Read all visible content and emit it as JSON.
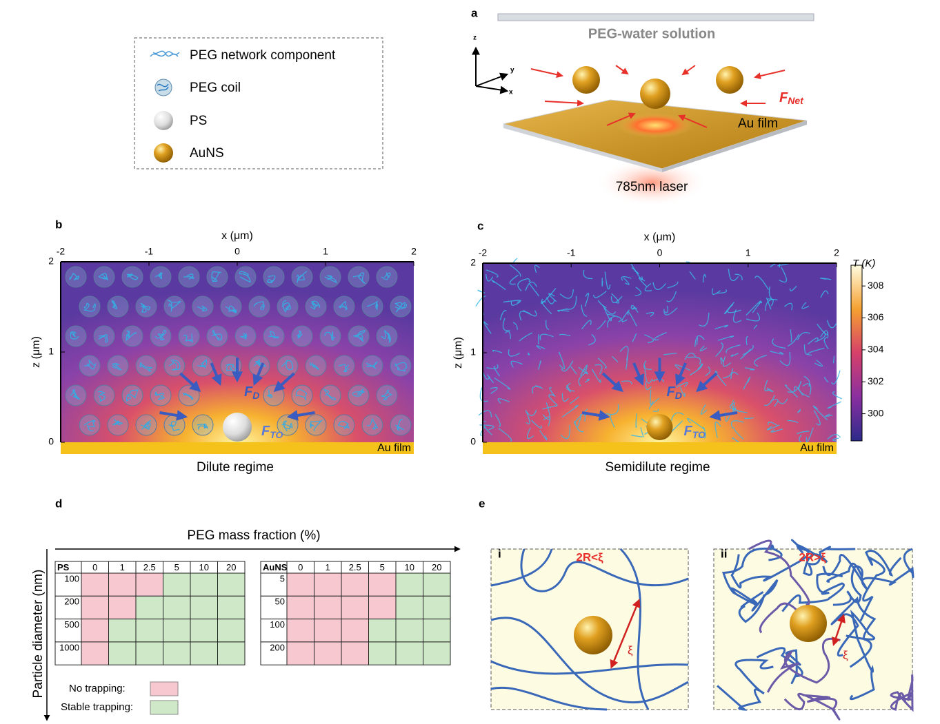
{
  "legend": {
    "items": [
      "PEG network component",
      "PEG coil",
      "PS",
      "AuNS"
    ]
  },
  "panel_a": {
    "label": "a",
    "solution": "PEG-water solution",
    "film": "Au film",
    "laser": "785nm laser",
    "force": "F",
    "force_sub": "Net",
    "axes": [
      "z",
      "y",
      "x"
    ]
  },
  "panel_b": {
    "label": "b",
    "xlabel": "x (μm)",
    "xticks": [
      -2,
      -1,
      0,
      1,
      2
    ],
    "xlim": [
      -2,
      2
    ],
    "zlabel": "z (μm)",
    "zticks": [
      0,
      1,
      2
    ],
    "zlim": [
      0,
      2
    ],
    "force_d": "F",
    "force_d_sub": "D",
    "force_to": "F",
    "force_to_sub": "TO",
    "film": "Au film",
    "caption": "Dilute regime"
  },
  "panel_c": {
    "label": "c",
    "xlabel": "x (μm)",
    "xticks": [
      -2,
      -1,
      0,
      1,
      2
    ],
    "xlim": [
      -2,
      2
    ],
    "zlabel": "z (μm)",
    "zticks": [
      0,
      1,
      2
    ],
    "zlim": [
      0,
      2
    ],
    "force_d": "F",
    "force_d_sub": "D",
    "force_to": "F",
    "force_to_sub": "TO",
    "film": "Au film",
    "caption": "Semidilute regime",
    "colorbar": {
      "label": "T (K)",
      "ticks": [
        300,
        302,
        304,
        306,
        308
      ],
      "lim": [
        298.3,
        309.3
      ]
    }
  },
  "panel_d": {
    "label": "d",
    "xlabel": "PEG mass fraction (%)",
    "ylabel": "Particle diameter (nm)",
    "tables": [
      {
        "header": [
          "PS",
          "0",
          "1",
          "2.5",
          "5",
          "10",
          "20"
        ],
        "rows": [
          {
            "label": "100",
            "stable": [
              0,
              0,
              0,
              1,
              1,
              1
            ]
          },
          {
            "label": "200",
            "stable": [
              0,
              0,
              1,
              1,
              1,
              1
            ]
          },
          {
            "label": "500",
            "stable": [
              0,
              1,
              1,
              1,
              1,
              1
            ]
          },
          {
            "label": "1000",
            "stable": [
              0,
              1,
              1,
              1,
              1,
              1
            ]
          }
        ]
      },
      {
        "header": [
          "AuNS",
          "0",
          "1",
          "2.5",
          "5",
          "10",
          "20"
        ],
        "rows": [
          {
            "label": "5",
            "stable": [
              0,
              0,
              0,
              0,
              1,
              1
            ]
          },
          {
            "label": "50",
            "stable": [
              0,
              0,
              0,
              0,
              1,
              1
            ]
          },
          {
            "label": "100",
            "stable": [
              0,
              0,
              0,
              1,
              1,
              1
            ]
          },
          {
            "label": "200",
            "stable": [
              0,
              0,
              0,
              1,
              1,
              1
            ]
          }
        ]
      }
    ],
    "key": {
      "no": "No trapping:",
      "stable": "Stable trapping:"
    }
  },
  "panel_e": {
    "label": "e",
    "sub_i": "i",
    "cond_i": "2R<ξ",
    "xi_i": "ξ",
    "sub_ii": "ii",
    "cond_ii": "2R>ξ",
    "xi_ii": "ξ"
  }
}
